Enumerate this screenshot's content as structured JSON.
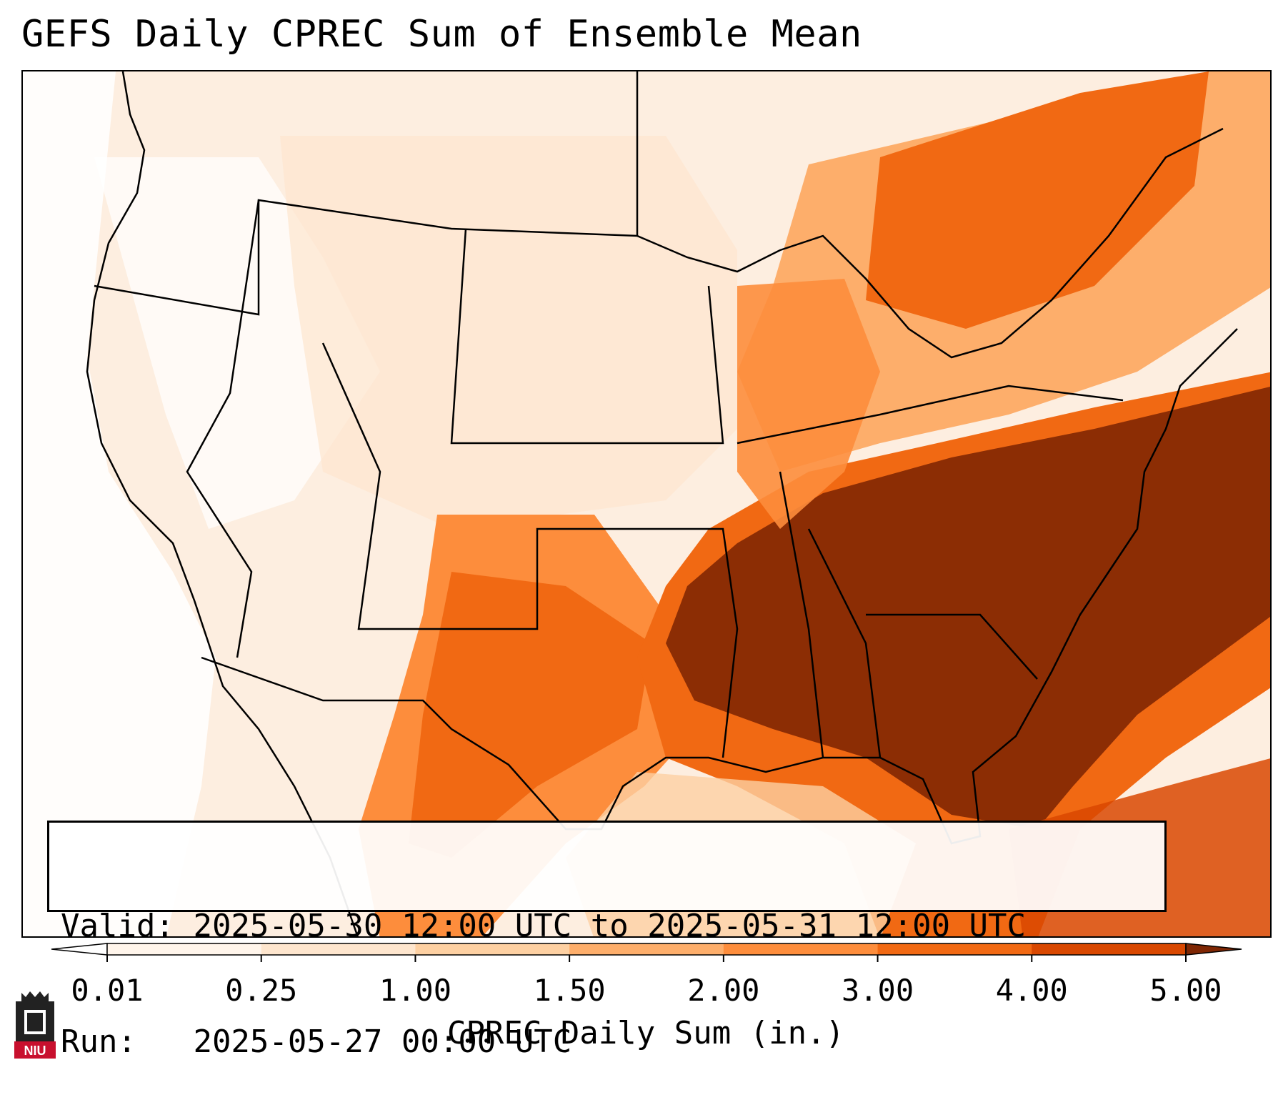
{
  "title": "GEFS Daily CPREC Sum of Ensemble Mean",
  "info": {
    "valid_label": "Valid:",
    "valid_value": "2025-05-30 12:00 UTC to 2025-05-31 12:00 UTC",
    "run_label": "Run:",
    "run_value": "2025-05-27 00:00 UTC"
  },
  "colorbar": {
    "label": "CPREC Daily Sum (in.)",
    "ticks": [
      "0.01",
      "0.25",
      "1.00",
      "1.50",
      "2.00",
      "3.00",
      "4.00",
      "5.00"
    ],
    "colors": [
      "#fff5eb",
      "#fee6ce",
      "#fdd0a2",
      "#fdae6b",
      "#fd8d3c",
      "#f16913",
      "#d94801",
      "#8c2d04"
    ],
    "under_color": "#ffffff",
    "over_color": "#7f2704"
  },
  "logo": {
    "text": "NIU",
    "color": "#c8102e"
  }
}
